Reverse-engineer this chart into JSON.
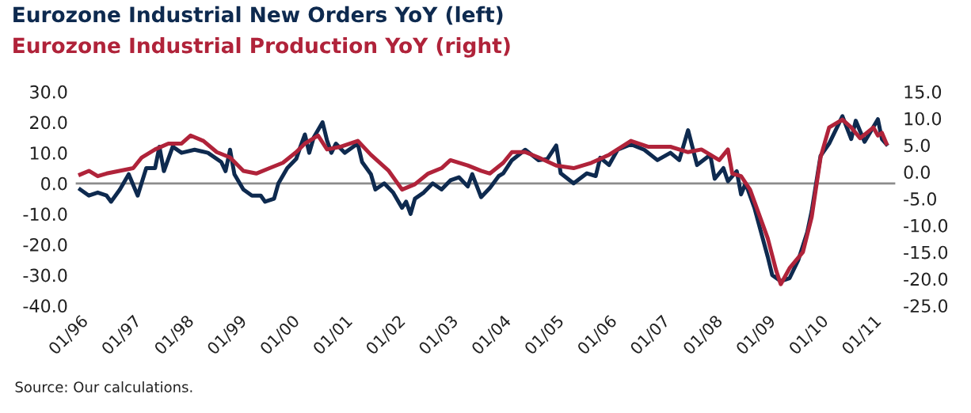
{
  "chart_data": {
    "type": "line",
    "legend": "top left",
    "annotations": [
      "Source: Our calculations."
    ],
    "xlim": [
      "1995-12",
      "2011-06"
    ],
    "xticks": [
      {
        "value": "1996-01",
        "label": "01/96"
      },
      {
        "value": "1997-01",
        "label": "01/97"
      },
      {
        "value": "1998-01",
        "label": "01/98"
      },
      {
        "value": "1999-01",
        "label": "01/99"
      },
      {
        "value": "2000-01",
        "label": "01/00"
      },
      {
        "value": "2001-01",
        "label": "01/01"
      },
      {
        "value": "2002-01",
        "label": "01/02"
      },
      {
        "value": "2003-01",
        "label": "01/03"
      },
      {
        "value": "2004-01",
        "label": "01/04"
      },
      {
        "value": "2005-01",
        "label": "01/05"
      },
      {
        "value": "2006-01",
        "label": "01/06"
      },
      {
        "value": "2007-01",
        "label": "01/07"
      },
      {
        "value": "2008-01",
        "label": "01/08"
      },
      {
        "value": "2009-01",
        "label": "01/09"
      },
      {
        "value": "2010-01",
        "label": "01/10"
      },
      {
        "value": "2011-01",
        "label": "01/11"
      }
    ],
    "ylim": [
      -40,
      30
    ],
    "yticks": [
      {
        "value": 30,
        "label": "30.0"
      },
      {
        "value": 20,
        "label": "20.0"
      },
      {
        "value": 10,
        "label": "10.0"
      },
      {
        "value": 0,
        "label": "0.0"
      },
      {
        "value": -10,
        "label": "-10.0"
      },
      {
        "value": -20,
        "label": "-20.0"
      },
      {
        "value": -30,
        "label": "-30.0"
      },
      {
        "value": -40,
        "label": "-40.0"
      }
    ],
    "y2lim": [
      -25,
      15
    ],
    "y2ticks": [
      {
        "value": 15,
        "label": "15.0"
      },
      {
        "value": 10,
        "label": "10.0"
      },
      {
        "value": 5,
        "label": "5.0"
      },
      {
        "value": 0,
        "label": "0.0"
      },
      {
        "value": -5,
        "label": "-5.0"
      },
      {
        "value": -10,
        "label": "-10.0"
      },
      {
        "value": -15,
        "label": "-15.0"
      },
      {
        "value": -20,
        "label": "-20.0"
      },
      {
        "value": -25,
        "label": "-25.0"
      }
    ],
    "ref_lines": [
      {
        "axis": "y",
        "value": 0,
        "color": "#8c8c8c"
      }
    ],
    "series": [
      {
        "name": "Eurozone Industrial New Orders YoY (left)",
        "color": "#0e2a4f",
        "x": [
          "1996-01",
          "1996-03",
          "1996-05",
          "1996-07",
          "1996-08",
          "1996-10",
          "1996-12",
          "1997-02",
          "1997-04",
          "1997-06",
          "1997-07",
          "1997-08",
          "1997-10",
          "1997-12",
          "1998-03",
          "1998-06",
          "1998-09",
          "1998-10",
          "1998-11",
          "1998-12",
          "1999-02",
          "1999-04",
          "1999-06",
          "1999-07",
          "1999-09",
          "1999-10",
          "1999-12",
          "2000-02",
          "2000-03",
          "2000-04",
          "2000-05",
          "2000-06",
          "2000-08",
          "2000-09",
          "2000-10",
          "2000-11",
          "2001-01",
          "2001-03",
          "2001-04",
          "2001-05",
          "2001-07",
          "2001-08",
          "2001-10",
          "2001-12",
          "2002-02",
          "2002-03",
          "2002-04",
          "2002-05",
          "2002-07",
          "2002-09",
          "2002-11",
          "2003-01",
          "2003-03",
          "2003-05",
          "2003-06",
          "2003-08",
          "2003-10",
          "2003-12",
          "2004-01",
          "2004-03",
          "2004-06",
          "2004-09",
          "2004-11",
          "2005-01",
          "2005-02",
          "2005-05",
          "2005-08",
          "2005-10",
          "2005-11",
          "2006-01",
          "2006-03",
          "2006-06",
          "2006-09",
          "2006-12",
          "2007-03",
          "2007-05",
          "2007-07",
          "2007-09",
          "2007-12",
          "2008-01",
          "2008-03",
          "2008-04",
          "2008-06",
          "2008-07",
          "2008-08",
          "2008-10",
          "2009-01",
          "2009-02",
          "2009-04",
          "2009-06",
          "2009-08",
          "2009-10",
          "2009-11",
          "2010-01",
          "2010-03",
          "2010-06",
          "2010-08",
          "2010-09",
          "2010-11",
          "2011-02",
          "2011-03",
          "2011-04"
        ],
        "values": [
          -2,
          -4,
          -3,
          -4,
          -6,
          -2,
          3,
          -4,
          5,
          5,
          12,
          4,
          12,
          10,
          11,
          10,
          7,
          4,
          11,
          3,
          -2,
          -4,
          -4,
          -6,
          -5,
          0,
          5,
          8,
          12,
          16,
          10,
          15,
          20,
          14,
          10,
          13,
          10,
          12,
          13,
          7,
          3,
          -2,
          0,
          -3,
          -8,
          -6,
          -10,
          -5,
          -3,
          0,
          -2,
          1,
          2,
          -1,
          3,
          -4.5,
          -1.5,
          2.4,
          3.3,
          7.6,
          11,
          7.6,
          8,
          12.4,
          3.3,
          0,
          3.3,
          2.4,
          8.4,
          6,
          11,
          12.8,
          11,
          7.6,
          10,
          7.6,
          17.4,
          6,
          9.3,
          1.5,
          5,
          0.7,
          4,
          -3.6,
          0,
          -8,
          -24,
          -30,
          -32,
          -31,
          -25,
          -16,
          -9,
          9,
          13,
          22,
          14.5,
          20.5,
          13.6,
          21,
          14.5,
          12.8
        ]
      },
      {
        "name": "Eurozone Industrial Production YoY (right)",
        "color": "#b0233a",
        "axis": "y2",
        "x": [
          "1996-01",
          "1996-03",
          "1996-05",
          "1996-07",
          "1997-01",
          "1997-03",
          "1997-06",
          "1997-09",
          "1997-12",
          "1998-02",
          "1998-05",
          "1998-08",
          "1998-11",
          "1999-02",
          "1999-05",
          "1999-08",
          "1999-11",
          "2000-02",
          "2000-04",
          "2000-07",
          "2000-09",
          "2000-12",
          "2001-04",
          "2001-07",
          "2001-11",
          "2002-02",
          "2002-05",
          "2002-08",
          "2002-11",
          "2003-01",
          "2003-05",
          "2003-08",
          "2003-10",
          "2004-01",
          "2004-03",
          "2004-06",
          "2004-09",
          "2005-01",
          "2005-05",
          "2005-09",
          "2006-01",
          "2006-06",
          "2006-10",
          "2007-03",
          "2007-07",
          "2007-10",
          "2008-02",
          "2008-04",
          "2008-05",
          "2008-07",
          "2008-09",
          "2009-01",
          "2009-03",
          "2009-04",
          "2009-06",
          "2009-09",
          "2009-11",
          "2010-01",
          "2010-03",
          "2010-06",
          "2010-08",
          "2010-10",
          "2011-01",
          "2011-02",
          "2011-03",
          "2011-04"
        ],
        "values": [
          -0.5,
          0.2,
          -0.8,
          -0.3,
          0.7,
          2.7,
          4.2,
          5.3,
          5.3,
          6.8,
          5.8,
          3.7,
          2.7,
          0.2,
          -0.3,
          0.7,
          1.7,
          3.7,
          5.3,
          6.8,
          4.2,
          4.7,
          5.8,
          3.2,
          0.2,
          -3.3,
          -2.3,
          -0.3,
          0.7,
          2.2,
          1.2,
          0.2,
          -0.3,
          1.7,
          3.7,
          3.7,
          2.7,
          1.2,
          0.7,
          1.7,
          3.2,
          5.8,
          4.7,
          4.7,
          3.7,
          4.2,
          2.2,
          4.2,
          -0.3,
          -0.8,
          -3.3,
          -12.4,
          -18.5,
          -21,
          -18,
          -15,
          -8.4,
          2.7,
          8.3,
          9.8,
          8.3,
          6.3,
          8.3,
          6.8,
          7.3,
          5.3
        ]
      }
    ]
  }
}
